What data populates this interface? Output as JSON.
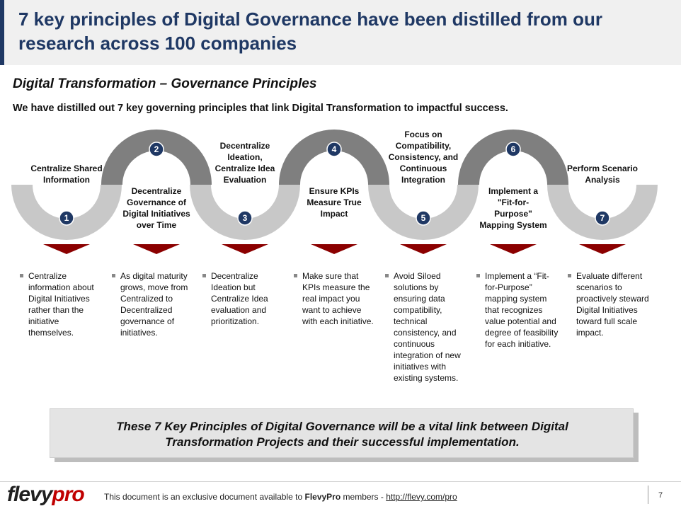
{
  "title": "7 key principles of Digital Governance have been distilled from our research across 100 companies",
  "subtitle": "Digital Transformation – Governance Principles",
  "intro": "We have distilled out 7 key governing principles that link Digital Transformation to impactful success.",
  "principles": [
    {
      "number": "1",
      "label": [
        "Centralize Shared",
        "Information"
      ],
      "bullet": "Centralize information about Digital Initiatives rather than the initiative themselves."
    },
    {
      "number": "2",
      "label": [
        "Decentralize",
        "Governance of",
        "Digital Initiatives",
        "over Time"
      ],
      "bullet": "As digital maturity grows, move from Centralized to Decentralized governance of initiatives."
    },
    {
      "number": "3",
      "label": [
        "Decentralize",
        "Ideation,",
        "Centralize Idea",
        "Evaluation"
      ],
      "bullet": "Decentralize Ideation but Centralize Idea evaluation and prioritization."
    },
    {
      "number": "4",
      "label": [
        "Ensure KPIs",
        "Measure True",
        "Impact"
      ],
      "bullet": "Make sure that KPIs measure the real impact you want to achieve with each initiative."
    },
    {
      "number": "5",
      "label": [
        "Focus on",
        "Compatibility,",
        "Consistency, and",
        "Continuous",
        "Integration"
      ],
      "bullet": "Avoid Siloed solutions by ensuring data compatibility, technical consistency, and continuous integration of new initiatives with existing systems."
    },
    {
      "number": "6",
      "label": [
        "Implement a",
        "\"Fit-for-",
        "Purpose\"",
        "Mapping System"
      ],
      "bullet": "Implement a “Fit-for-Purpose” mapping system that recognizes value potential and degree of feasibility for each initiative."
    },
    {
      "number": "7",
      "label": [
        "Perform Scenario",
        "Analysis"
      ],
      "bullet": "Evaluate different scenarios to proactively steward Digital Initiatives toward full scale impact."
    }
  ],
  "callout": {
    "line1": "These 7 Key Principles of Digital Governance will be a vital link between Digital",
    "line2": "Transformation Projects and their successful implementation."
  },
  "footer": {
    "logo_part1": "flevy",
    "logo_part2": "pro",
    "text_before": "This document is an exclusive document available to ",
    "brand": "FlevyPro",
    "text_middle": " members - ",
    "link": "http://flevy.com/pro",
    "page": "7"
  },
  "colors": {
    "title": "#1f3864",
    "light_arc": "#c8c8c8",
    "dark_arc": "#7f7f7f",
    "badge": "#1f3864",
    "arrow": "#8b0000"
  }
}
